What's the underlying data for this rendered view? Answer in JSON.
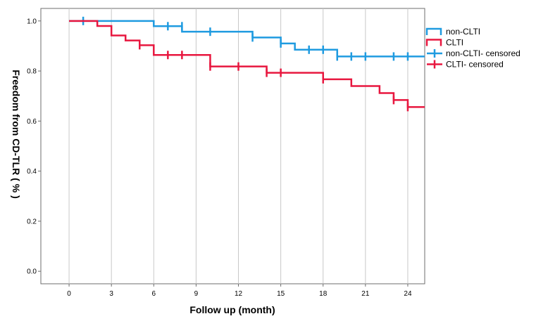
{
  "chart_data": {
    "type": "line",
    "title": "",
    "xlabel": "Follow up (month)",
    "ylabel": "Freedom from CD-TLR ( % )",
    "xlim": [
      -2,
      25.2
    ],
    "ylim": [
      -0.05,
      1.05
    ],
    "x_ticks": [
      0,
      3,
      6,
      9,
      12,
      15,
      18,
      21,
      24
    ],
    "x_tick_labels": [
      "0",
      "3",
      "6",
      "9",
      "12",
      "15",
      "18",
      "21",
      "24"
    ],
    "y_ticks": [
      0.0,
      0.2,
      0.4,
      0.6,
      0.8,
      1.0
    ],
    "y_tick_labels": [
      "0.0",
      "0.2",
      "0.4",
      "0.6",
      "0.8",
      "1.0"
    ],
    "grid": "vertical",
    "legend_position": "right",
    "legend": [
      {
        "label": "non-CLTI",
        "kind": "step",
        "color": "#1f9be0"
      },
      {
        "label": "CLTI",
        "kind": "step",
        "color": "#e8173f"
      },
      {
        "label": "non-CLTI- censored",
        "kind": "censored",
        "color": "#1f9be0"
      },
      {
        "label": "CLTI- censored",
        "kind": "censored",
        "color": "#e8173f"
      }
    ],
    "series": [
      {
        "name": "non-CLTI",
        "color": "#1f9be0",
        "x": [
          0,
          6,
          8,
          13,
          15,
          16,
          19,
          25.2
        ],
        "y": [
          1.0,
          0.979,
          0.957,
          0.934,
          0.91,
          0.885,
          0.858,
          0.858
        ],
        "censored": [
          {
            "x": 1,
            "y": 1.0
          },
          {
            "x": 7,
            "y": 0.979
          },
          {
            "x": 8,
            "y": 0.979
          },
          {
            "x": 10,
            "y": 0.957
          },
          {
            "x": 13,
            "y": 0.934
          },
          {
            "x": 15,
            "y": 0.91
          },
          {
            "x": 17,
            "y": 0.885
          },
          {
            "x": 18,
            "y": 0.885
          },
          {
            "x": 19,
            "y": 0.858
          },
          {
            "x": 20,
            "y": 0.858
          },
          {
            "x": 21,
            "y": 0.858
          },
          {
            "x": 23,
            "y": 0.858
          },
          {
            "x": 24,
            "y": 0.858
          }
        ]
      },
      {
        "name": "CLTI",
        "color": "#e8173f",
        "x": [
          0,
          2,
          3,
          4,
          5,
          6,
          10,
          14,
          18,
          20,
          22,
          23,
          24,
          25.2
        ],
        "y": [
          1.0,
          0.98,
          0.942,
          0.922,
          0.903,
          0.864,
          0.818,
          0.793,
          0.767,
          0.74,
          0.712,
          0.684,
          0.656,
          0.656
        ],
        "censored": [
          {
            "x": 5,
            "y": 0.903
          },
          {
            "x": 7,
            "y": 0.864
          },
          {
            "x": 8,
            "y": 0.864
          },
          {
            "x": 10,
            "y": 0.818
          },
          {
            "x": 12,
            "y": 0.818
          },
          {
            "x": 14,
            "y": 0.793
          },
          {
            "x": 15,
            "y": 0.793
          },
          {
            "x": 18,
            "y": 0.767
          },
          {
            "x": 23,
            "y": 0.684
          },
          {
            "x": 24,
            "y": 0.656
          }
        ]
      }
    ]
  }
}
